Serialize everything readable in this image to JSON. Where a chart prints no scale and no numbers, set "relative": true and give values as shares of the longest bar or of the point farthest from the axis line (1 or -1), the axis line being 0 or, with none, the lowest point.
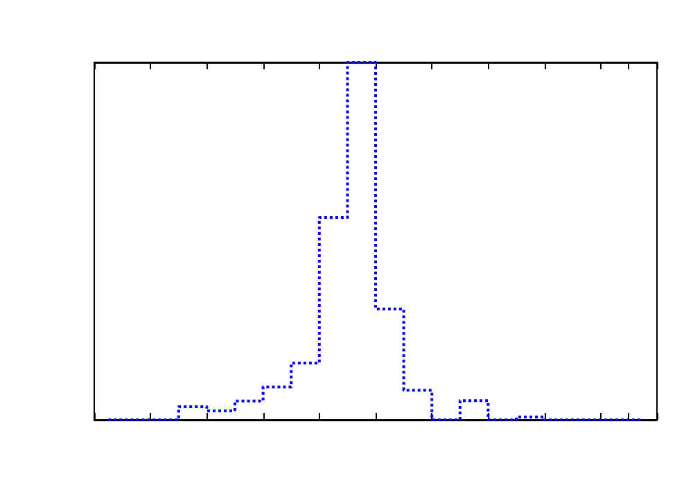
{
  "chart_data": {
    "type": "step",
    "relative": true,
    "categories": [
      null,
      null,
      null,
      null,
      null,
      null,
      null,
      null,
      null,
      null,
      null,
      null,
      null,
      null,
      null,
      null,
      null,
      null,
      null,
      null
    ],
    "series": [
      {
        "color": "#0000ff",
        "values": [
          0,
          0,
          0,
          0.037,
          0.025,
          0.053,
          0.092,
          0.159,
          0.566,
          1,
          0.31,
          0.083,
          0,
          0.054,
          0,
          0.008,
          0,
          0,
          0,
          0
        ]
      }
    ],
    "line_style": "dotted",
    "marker": "none",
    "grid": false
  }
}
